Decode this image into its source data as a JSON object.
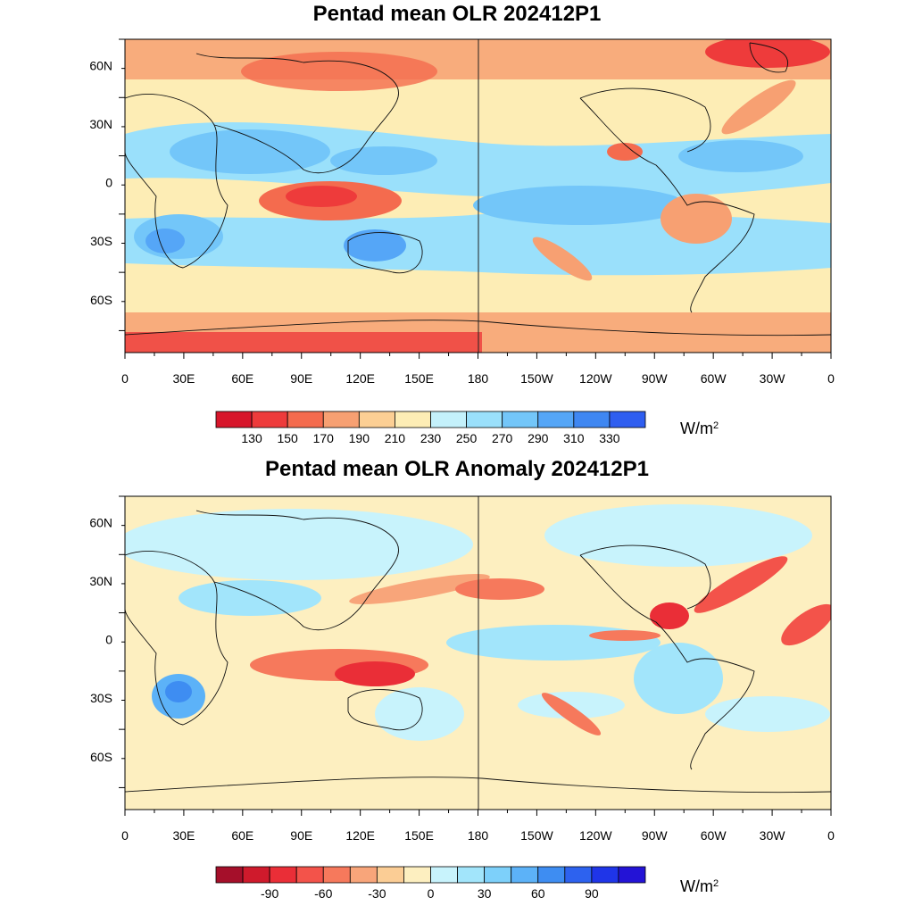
{
  "panels": [
    {
      "title": "Pentad mean OLR 202412P1",
      "y_ticks": [
        "60N",
        "30N",
        "0",
        "30S",
        "60S"
      ],
      "x_ticks": [
        "0",
        "30E",
        "60E",
        "90E",
        "120E",
        "150E",
        "180",
        "150W",
        "120W",
        "90W",
        "60W",
        "30W",
        "0"
      ],
      "colorbar": {
        "labels": [
          "130",
          "150",
          "170",
          "190",
          "210",
          "230",
          "250",
          "270",
          "290",
          "310",
          "330"
        ],
        "colors": [
          "#d7162b",
          "#ee3b3b",
          "#f46b4e",
          "#f7a072",
          "#fccf94",
          "#fdedb5",
          "#c4f1fb",
          "#9ae0fb",
          "#73c6f9",
          "#55a6f7",
          "#3f87f2",
          "#2f5ef0"
        ],
        "units_base": "W/m",
        "units_sup": "2"
      }
    },
    {
      "title": "Pentad mean OLR Anomaly 202412P1",
      "y_ticks": [
        "60N",
        "30N",
        "0",
        "30S",
        "60S"
      ],
      "x_ticks": [
        "0",
        "30E",
        "60E",
        "90E",
        "120E",
        "150E",
        "180",
        "150W",
        "120W",
        "90W",
        "60W",
        "30W",
        "0"
      ],
      "colorbar": {
        "labels": [
          "-90",
          "-60",
          "-30",
          "0",
          "30",
          "60",
          "90"
        ],
        "colors": [
          "#a50f2a",
          "#cf1a2c",
          "#ea2e37",
          "#f3534a",
          "#f6795c",
          "#f8a57a",
          "#fbcd95",
          "#fdefc0",
          "#c8f3fc",
          "#a2e5fb",
          "#7dd0fa",
          "#5cb2f8",
          "#3e8df2",
          "#2d62ef",
          "#1f35e8",
          "#2313d6"
        ],
        "units_base": "W/m",
        "units_sup": "2"
      }
    }
  ]
}
